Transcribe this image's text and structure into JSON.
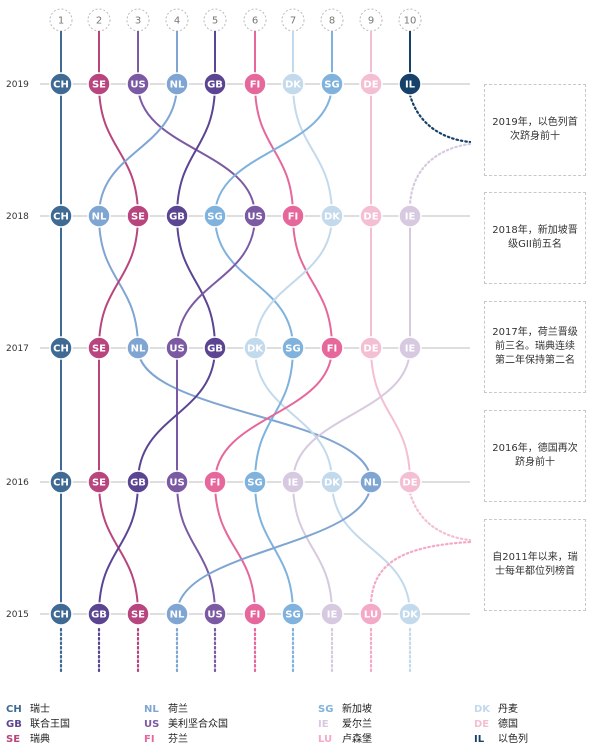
{
  "chart_data": {
    "type": "bump",
    "ranks": [
      "1",
      "2",
      "3",
      "4",
      "5",
      "6",
      "7",
      "8",
      "9",
      "10"
    ],
    "years": [
      "2019",
      "2018",
      "2017",
      "2016",
      "2015"
    ],
    "rankings": {
      "2019": [
        "CH",
        "SE",
        "US",
        "NL",
        "GB",
        "FI",
        "DK",
        "SG",
        "DE",
        "IL"
      ],
      "2018": [
        "CH",
        "NL",
        "SE",
        "GB",
        "SG",
        "US",
        "FI",
        "DK",
        "DE",
        "IE"
      ],
      "2017": [
        "CH",
        "SE",
        "NL",
        "US",
        "GB",
        "DK",
        "SG",
        "FI",
        "DE",
        "IE"
      ],
      "2016": [
        "CH",
        "SE",
        "GB",
        "US",
        "FI",
        "SG",
        "IE",
        "DK",
        "NL",
        "DE"
      ],
      "2015": [
        "CH",
        "GB",
        "SE",
        "NL",
        "US",
        "FI",
        "SG",
        "IE",
        "LU",
        "DK"
      ]
    },
    "countries": {
      "CH": {
        "name": "瑞士",
        "color": "#3f6a94"
      },
      "GB": {
        "name": "联合王国",
        "color": "#5b4592"
      },
      "SE": {
        "name": "瑞典",
        "color": "#b8457d"
      },
      "NL": {
        "name": "荷兰",
        "color": "#7fa5d2"
      },
      "US": {
        "name": "美利坚合众国",
        "color": "#7b5aa3"
      },
      "FI": {
        "name": "芬兰",
        "color": "#e6679b"
      },
      "SG": {
        "name": "新加坡",
        "color": "#7fb2dd"
      },
      "IE": {
        "name": "爱尔兰",
        "color": "#d7c9e0"
      },
      "LU": {
        "name": "卢森堡",
        "color": "#f3a9c7"
      },
      "DK": {
        "name": "丹麦",
        "color": "#c3d9ec"
      },
      "DE": {
        "name": "德国",
        "color": "#f4bfd3"
      },
      "IL": {
        "name": "以色列",
        "color": "#16426a"
      }
    },
    "annotations": [
      "2019年，以色列首次跻身前十",
      "2018年，新加坡晋级GII前五名",
      "2017年，荷兰晋级前三名。瑞典连续第二年保持第二名",
      "2016年，德国再次跻身前十",
      "自2011年以来，瑞士每年都位列榜首"
    ]
  },
  "legend": [
    {
      "code": "CH",
      "name": "瑞士"
    },
    {
      "code": "GB",
      "name": "联合王国"
    },
    {
      "code": "SE",
      "name": "瑞典"
    },
    {
      "code": "NL",
      "name": "荷兰"
    },
    {
      "code": "US",
      "name": "美利坚合众国"
    },
    {
      "code": "FI",
      "name": "芬兰"
    },
    {
      "code": "SG",
      "name": "新加坡"
    },
    {
      "code": "IE",
      "name": "爱尔兰"
    },
    {
      "code": "LU",
      "name": "卢森堡"
    },
    {
      "code": "DK",
      "name": "丹麦"
    },
    {
      "code": "DE",
      "name": "德国"
    },
    {
      "code": "IL",
      "name": "以色列"
    }
  ]
}
